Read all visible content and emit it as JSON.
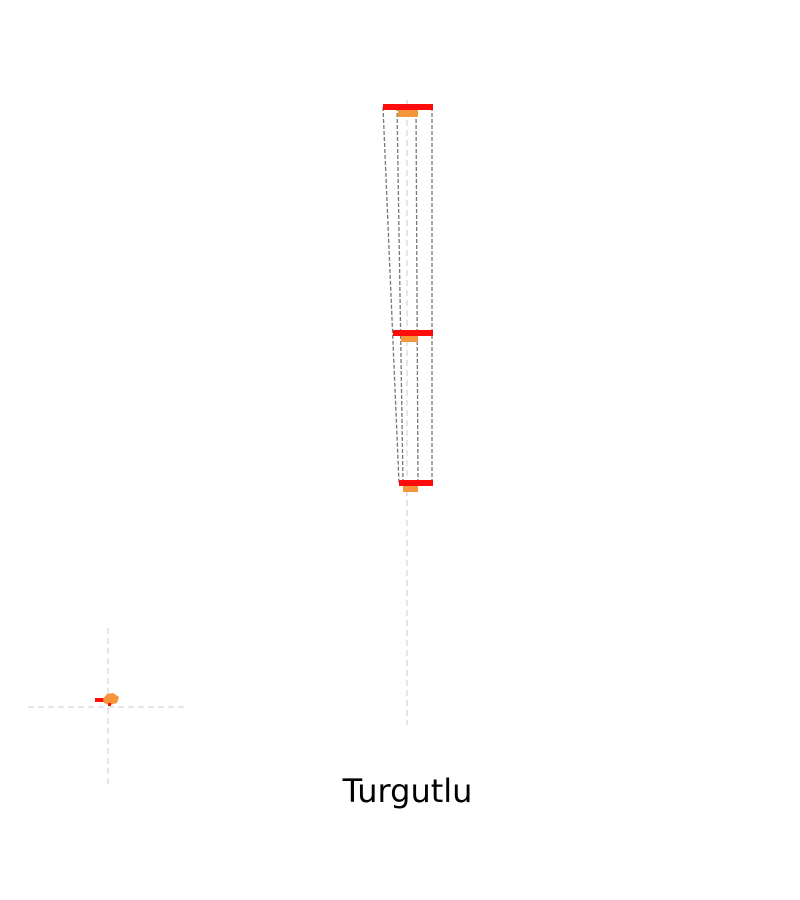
{
  "caption": "Turgutlu",
  "colors": {
    "bar": "#ff0d0d",
    "marker": "#f5963a",
    "outline": "#777777",
    "guide": "#cccccc",
    "background": "#ffffff"
  }
}
